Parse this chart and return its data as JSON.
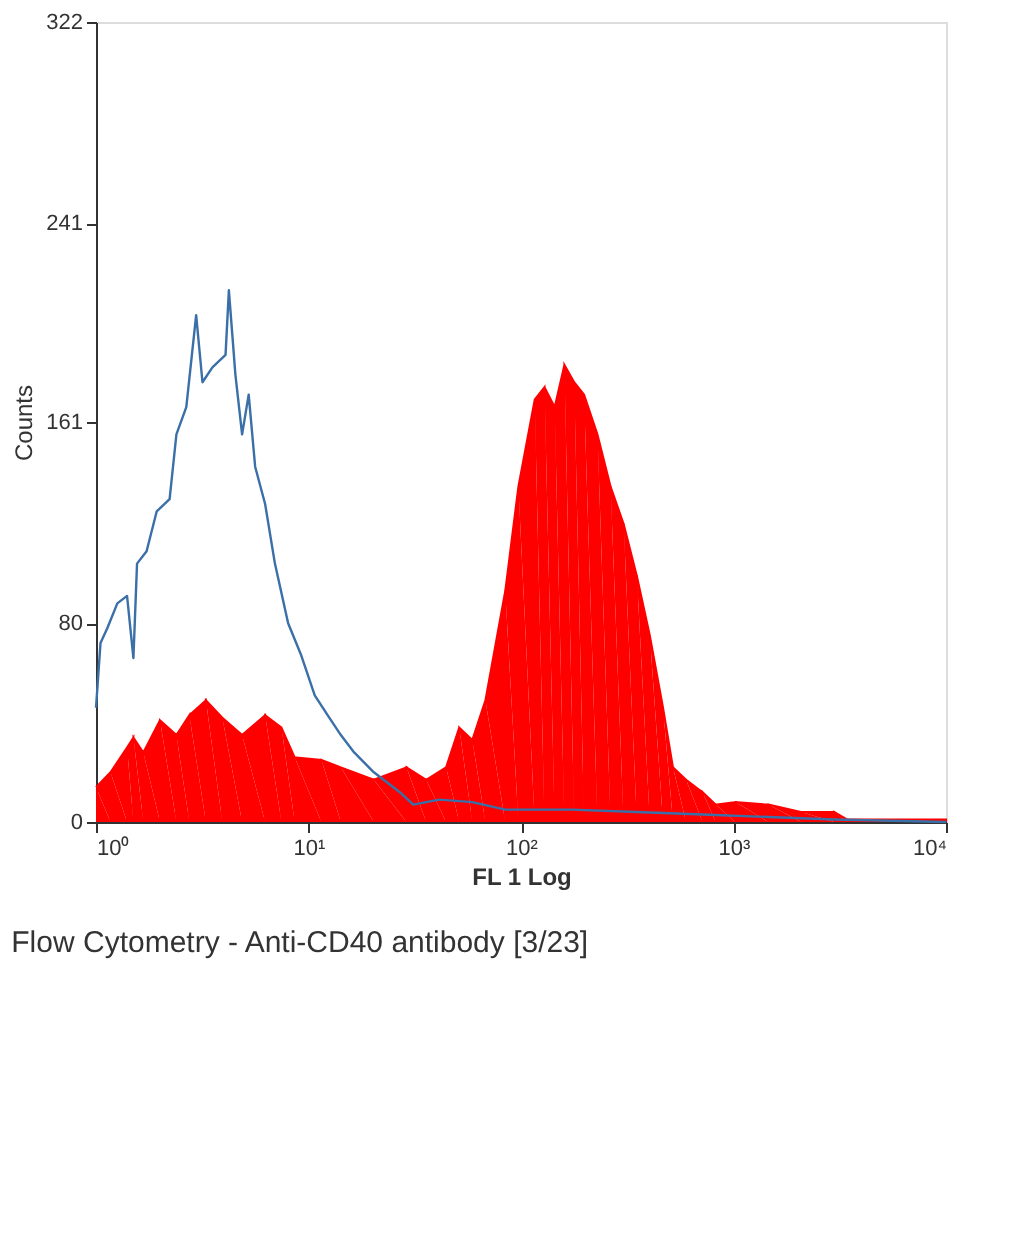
{
  "chart_data": {
    "type": "area",
    "title": "Flow Cytometry - Anti-CD40 antibody [3/23]",
    "xlabel": "FL 1 Log",
    "ylabel": "Counts",
    "log": "x",
    "grid": false,
    "xlim": [
      1,
      10000
    ],
    "ylim": [
      0,
      322
    ],
    "xticks": [
      {
        "value": 1,
        "label": "10⁰"
      },
      {
        "value": 10,
        "label": "10¹"
      },
      {
        "value": 100,
        "label": "10²"
      },
      {
        "value": 1000,
        "label": "10³"
      },
      {
        "value": 10000,
        "label": "10⁴"
      }
    ],
    "yticks": [
      0,
      80,
      161,
      241,
      322
    ],
    "series": [
      {
        "color": "#ff0000",
        "x": [
          1,
          1.17,
          1.4,
          1.5,
          1.67,
          2,
          2.39,
          2.75,
          3.29,
          3.93,
          4.87,
          6.25,
          7.46,
          8.61,
          11.5,
          14.2,
          20.3,
          28.9,
          35.8,
          44.4,
          51.2,
          59,
          68,
          84.3,
          97.2,
          116,
          129,
          144,
          160,
          178,
          198,
          229,
          264,
          304,
          351,
          404,
          466,
          519,
          598,
          715,
          825,
          1021,
          1459,
          2084,
          2978,
          3433,
          6067,
          10000
        ],
        "values": [
          14,
          20,
          30,
          34,
          28,
          41,
          35,
          43,
          49,
          42,
          35,
          43,
          38,
          26,
          25,
          22,
          17,
          22,
          17,
          22,
          38,
          33,
          49,
          93,
          135,
          170,
          175,
          167,
          184,
          177,
          172,
          156,
          135,
          120,
          99,
          75,
          46,
          22,
          17,
          12,
          7,
          8,
          7,
          4,
          4,
          1,
          1,
          1
        ]
      },
      {
        "type": "line",
        "color": "#3a6fa8",
        "x": [
          1,
          1.05,
          1.13,
          1.26,
          1.4,
          1.5,
          1.56,
          1.73,
          1.93,
          2.22,
          2.39,
          2.66,
          2.96,
          3.17,
          3.53,
          4.07,
          4.22,
          4.53,
          4.87,
          5.23,
          5.61,
          6.25,
          6.95,
          8.02,
          9.25,
          10.7,
          12.3,
          14.2,
          16.4,
          20.3,
          26.9,
          31.1,
          41.3,
          59,
          84.3,
          172,
          351,
          715,
          1459,
          2978,
          10000
        ],
        "values": [
          46,
          72,
          78,
          88,
          91,
          66,
          104,
          109,
          125,
          130,
          156,
          167,
          204,
          177,
          183,
          188,
          214,
          180,
          156,
          172,
          143,
          128,
          104,
          80,
          67,
          51,
          43,
          35,
          28,
          20,
          12,
          7,
          9,
          8,
          5,
          5,
          4,
          3,
          2,
          1,
          0
        ]
      }
    ]
  }
}
